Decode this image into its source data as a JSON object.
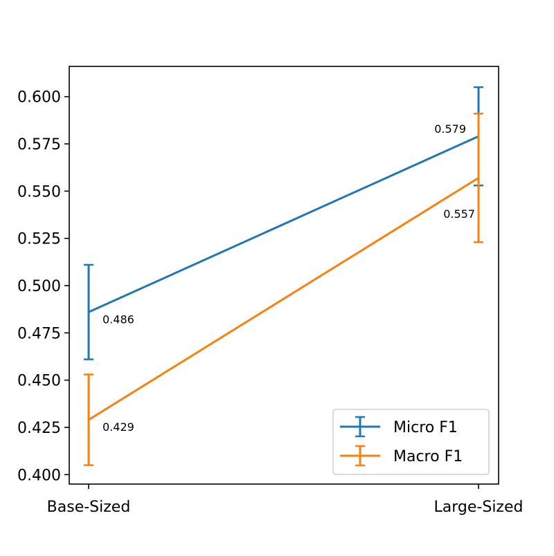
{
  "chart_data": {
    "type": "line",
    "categories": [
      "Base-Sized",
      "Large-Sized"
    ],
    "ylim": [
      0.395,
      0.616
    ],
    "y_ticks": [
      "0.400",
      "0.425",
      "0.450",
      "0.475",
      "0.500",
      "0.525",
      "0.550",
      "0.575",
      "0.600"
    ],
    "series": [
      {
        "name": "Micro F1",
        "color": "#1f77b4",
        "values": [
          0.486,
          0.579
        ],
        "errors": [
          0.025,
          0.026
        ],
        "value_labels": [
          "0.486",
          "0.579"
        ]
      },
      {
        "name": "Macro F1",
        "color": "#ff7f0e",
        "values": [
          0.429,
          0.557
        ],
        "errors": [
          0.024,
          0.034
        ],
        "value_labels": [
          "0.429",
          "0.557"
        ]
      }
    ],
    "legend_position": "lower-right",
    "grid": false
  }
}
